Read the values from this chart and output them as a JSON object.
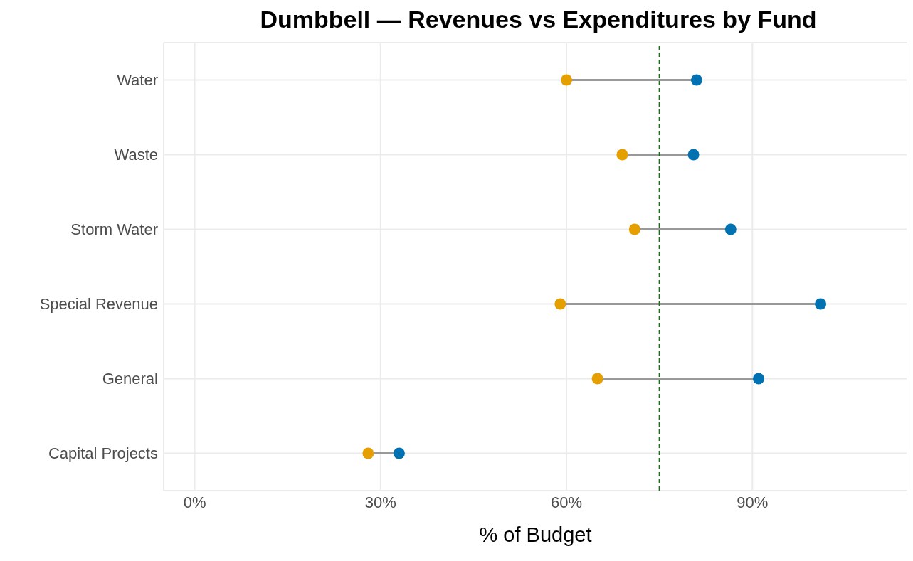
{
  "chart_data": {
    "type": "scatter",
    "orientation": "horizontal",
    "title": "Dumbbell — Revenues vs Expenditures by Fund",
    "xlabel": "% of Budget",
    "categories": [
      "Water",
      "Waste",
      "Storm Water",
      "Special Revenue",
      "General",
      "Capital Projects"
    ],
    "series": [
      {
        "color": "#e69f00",
        "values": [
          60,
          69,
          71,
          59,
          65,
          28
        ]
      },
      {
        "color": "#0072b2",
        "values": [
          81,
          80.5,
          86.5,
          101,
          91,
          33
        ]
      }
    ],
    "xlim": [
      -5,
      115
    ],
    "xticks": [
      {
        "value": 0,
        "label": "0%"
      },
      {
        "value": 30,
        "label": "30%"
      },
      {
        "value": 60,
        "label": "60%"
      },
      {
        "value": 90,
        "label": "90%"
      }
    ],
    "ref_lines": [
      {
        "axis": "x",
        "value": 75,
        "color": "#1b6b1b",
        "line_style": "dashed"
      }
    ],
    "grid": true,
    "marker": "circle"
  }
}
